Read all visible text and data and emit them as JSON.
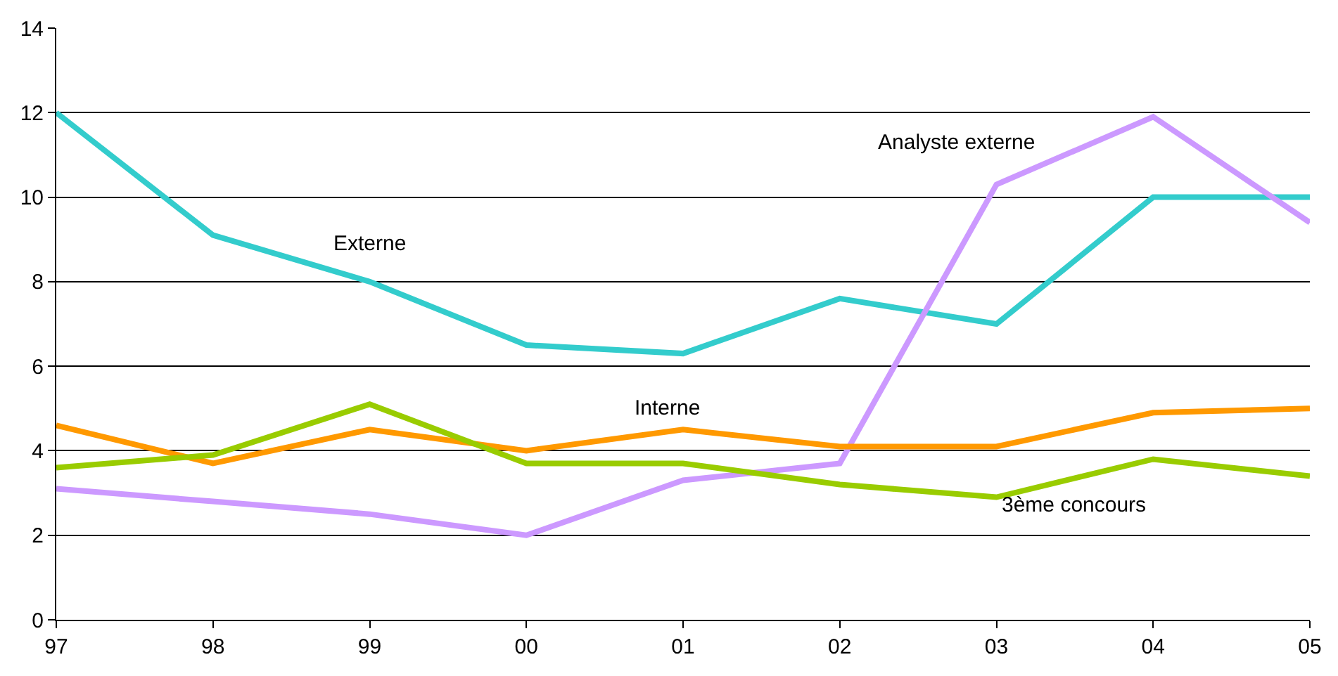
{
  "chart_data": {
    "type": "line",
    "categories": [
      "97",
      "98",
      "99",
      "00",
      "01",
      "02",
      "03",
      "04",
      "05"
    ],
    "series": [
      {
        "name": "Externe",
        "color": "#33cccc",
        "values": [
          12.0,
          9.1,
          8.0,
          6.5,
          6.3,
          7.6,
          7.0,
          10.0,
          10.0
        ]
      },
      {
        "name": "Analyste externe",
        "color": "#cc99ff",
        "values": [
          3.1,
          2.8,
          2.5,
          2.0,
          3.3,
          3.7,
          10.3,
          11.9,
          9.4
        ]
      },
      {
        "name": "Interne",
        "color": "#ff9900",
        "values": [
          4.6,
          3.7,
          4.5,
          4.0,
          4.5,
          4.1,
          4.1,
          4.9,
          5.0
        ]
      },
      {
        "name": "3ème concours",
        "color": "#99cc00",
        "values": [
          3.6,
          3.9,
          5.1,
          3.7,
          3.7,
          3.2,
          2.9,
          3.8,
          3.4
        ]
      }
    ],
    "ylim": [
      0,
      14
    ],
    "yticks": [
      0,
      2,
      4,
      6,
      8,
      10,
      12,
      14
    ],
    "grid": "y",
    "legend": false,
    "marker": "none",
    "line_style": "solid"
  }
}
